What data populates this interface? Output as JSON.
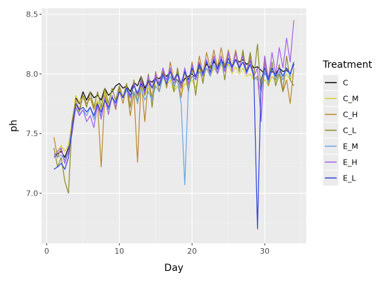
{
  "chart_data": {
    "type": "line",
    "xlabel": "Day",
    "ylabel": "ph",
    "xlim": [
      -0.7,
      35.7
    ],
    "ylim": [
      6.58,
      8.55
    ],
    "x_ticks": [
      0,
      10,
      20,
      30
    ],
    "x_tick_labels": [
      "0",
      "10",
      "20",
      "30"
    ],
    "y_ticks": [
      7.0,
      7.5,
      8.0,
      8.5
    ],
    "y_tick_labels": [
      "7.0",
      "7.5",
      "8.0",
      "8.5"
    ],
    "grid": true,
    "legend": {
      "title": "Treatment",
      "position": "right"
    },
    "x": [
      1,
      1.5,
      2,
      2.5,
      3,
      3.5,
      4,
      4.5,
      5,
      5.5,
      6,
      6.5,
      7,
      7.5,
      8,
      8.5,
      9,
      9.5,
      10,
      10.5,
      11,
      11.5,
      12,
      12.5,
      13,
      13.5,
      14,
      14.5,
      15,
      15.5,
      16,
      16.5,
      17,
      17.5,
      18,
      18.5,
      19,
      19.5,
      20,
      20.5,
      21,
      21.5,
      22,
      22.5,
      23,
      23.5,
      24,
      24.5,
      25,
      25.5,
      26,
      26.5,
      27,
      27.5,
      28,
      28.5,
      29,
      29.5,
      30,
      30.5,
      31,
      31.5,
      32,
      32.5,
      33,
      33.5,
      34
    ],
    "series": [
      {
        "name": "C",
        "color": "#000000",
        "values": [
          7.3,
          7.33,
          7.35,
          7.3,
          7.38,
          7.6,
          7.8,
          7.75,
          7.85,
          7.78,
          7.85,
          7.8,
          7.82,
          7.78,
          7.88,
          7.82,
          7.85,
          7.9,
          7.92,
          7.88,
          7.9,
          7.85,
          7.93,
          7.9,
          7.98,
          7.88,
          7.95,
          7.93,
          7.97,
          7.96,
          8.0,
          7.98,
          8.02,
          7.95,
          7.95,
          7.9,
          7.96,
          7.98,
          8.0,
          7.97,
          8.05,
          8.02,
          8.08,
          8.05,
          8.1,
          8.06,
          8.12,
          8.08,
          8.1,
          8.07,
          8.12,
          8.1,
          8.12,
          8.08,
          8.1,
          8.05,
          8.06,
          8.03,
          8.0,
          7.98,
          8.02,
          8.0,
          8.05,
          8.02,
          8.03,
          8.0,
          8.08
        ]
      },
      {
        "name": "C_M",
        "color": "#d8d22a",
        "values": [
          7.3,
          7.35,
          7.4,
          7.35,
          7.4,
          7.6,
          7.82,
          7.76,
          7.82,
          7.75,
          7.8,
          7.72,
          7.78,
          7.7,
          7.85,
          7.72,
          7.8,
          7.78,
          7.85,
          7.82,
          7.86,
          7.8,
          7.85,
          7.78,
          7.9,
          7.82,
          7.88,
          7.8,
          7.9,
          7.85,
          7.98,
          7.9,
          7.95,
          7.85,
          7.9,
          7.82,
          7.92,
          7.9,
          7.95,
          7.88,
          8.02,
          7.95,
          8.05,
          7.98,
          8.05,
          8.0,
          8.08,
          8.02,
          8.08,
          8.0,
          8.06,
          8.0,
          8.05,
          7.98,
          8.0,
          7.95,
          7.98,
          7.92,
          7.95,
          7.9,
          7.98,
          7.93,
          8.02,
          7.95,
          8.0,
          7.95,
          8.02
        ]
      },
      {
        "name": "C_H",
        "color": "#b8862b",
        "values": [
          7.47,
          7.3,
          7.38,
          7.25,
          7.35,
          7.55,
          7.78,
          7.7,
          7.82,
          7.75,
          7.8,
          7.7,
          7.76,
          7.22,
          7.82,
          7.7,
          7.82,
          7.7,
          7.88,
          7.75,
          7.9,
          7.65,
          7.85,
          7.26,
          7.95,
          7.6,
          7.95,
          7.8,
          8.02,
          7.9,
          8.05,
          7.88,
          8.1,
          7.95,
          8.02,
          7.8,
          8.05,
          7.9,
          8.1,
          7.95,
          8.15,
          8.0,
          8.18,
          8.05,
          8.2,
          8.05,
          8.22,
          8.06,
          8.2,
          8.05,
          8.2,
          8.05,
          8.18,
          8.02,
          8.15,
          7.95,
          7.98,
          7.64,
          8.1,
          7.9,
          8.05,
          7.95,
          8.08,
          7.85,
          7.95,
          7.75,
          8.05
        ]
      },
      {
        "name": "C_L",
        "color": "#8a8a2a",
        "values": [
          7.38,
          7.22,
          7.3,
          7.1,
          7.0,
          7.6,
          7.75,
          7.68,
          7.82,
          7.72,
          7.85,
          7.72,
          7.85,
          7.72,
          7.88,
          7.75,
          7.88,
          7.78,
          7.9,
          7.8,
          7.92,
          7.72,
          7.95,
          7.75,
          7.98,
          7.82,
          8.0,
          7.72,
          7.98,
          7.85,
          8.02,
          7.9,
          8.05,
          7.85,
          8.05,
          7.88,
          8.02,
          7.85,
          8.05,
          7.82,
          8.08,
          7.92,
          8.12,
          7.98,
          8.15,
          8.0,
          8.15,
          7.95,
          8.18,
          8.02,
          8.18,
          8.02,
          8.2,
          8.0,
          8.18,
          7.98,
          8.25,
          7.85,
          8.15,
          7.92,
          8.1,
          7.9,
          8.0,
          7.85,
          8.15,
          7.95,
          7.9
        ]
      },
      {
        "name": "E_M",
        "color": "#6aa3e8",
        "values": [
          7.33,
          7.3,
          7.32,
          7.28,
          7.35,
          7.55,
          7.72,
          7.66,
          7.7,
          7.65,
          7.72,
          7.62,
          7.75,
          7.65,
          7.78,
          7.7,
          7.8,
          7.75,
          7.85,
          7.8,
          7.86,
          7.8,
          7.85,
          7.76,
          7.88,
          7.78,
          7.85,
          7.78,
          7.9,
          7.85,
          7.98,
          7.92,
          7.98,
          7.9,
          7.95,
          7.75,
          7.07,
          7.9,
          7.98,
          7.95,
          8.02,
          7.98,
          8.05,
          7.98,
          8.08,
          8.0,
          8.1,
          8.02,
          8.1,
          8.04,
          8.12,
          8.05,
          8.1,
          8.0,
          8.08,
          7.98,
          7.95,
          7.85,
          8.02,
          7.92,
          8.05,
          7.95,
          8.02,
          7.95,
          8.05,
          7.98,
          8.1
        ]
      },
      {
        "name": "E_H",
        "color": "#a35df0",
        "values": [
          7.3,
          7.35,
          7.38,
          7.25,
          7.35,
          7.5,
          7.72,
          7.65,
          7.7,
          7.6,
          7.65,
          7.55,
          7.75,
          7.62,
          7.8,
          7.66,
          7.82,
          7.72,
          7.85,
          7.8,
          7.88,
          7.8,
          7.92,
          7.82,
          7.95,
          7.84,
          7.98,
          7.88,
          8.0,
          7.92,
          8.05,
          7.95,
          8.05,
          7.92,
          8.0,
          7.88,
          8.05,
          7.92,
          8.08,
          7.95,
          8.1,
          7.98,
          8.12,
          8.0,
          8.15,
          8.0,
          8.15,
          8.02,
          8.18,
          8.02,
          8.18,
          8.05,
          8.15,
          8.0,
          8.12,
          7.98,
          8.05,
          7.6,
          8.15,
          7.95,
          8.18,
          8.0,
          8.22,
          8.05,
          8.3,
          8.1,
          8.45
        ]
      },
      {
        "name": "E_L",
        "color": "#2b3fe0",
        "values": [
          7.2,
          7.22,
          7.25,
          7.2,
          7.3,
          7.55,
          7.75,
          7.7,
          7.72,
          7.68,
          7.72,
          7.65,
          7.75,
          7.68,
          7.78,
          7.72,
          7.8,
          7.76,
          7.85,
          7.8,
          7.88,
          7.82,
          7.9,
          7.84,
          7.92,
          7.86,
          7.94,
          7.88,
          7.96,
          7.9,
          8.0,
          7.92,
          8.02,
          7.95,
          8.0,
          7.92,
          8.02,
          7.95,
          8.05,
          7.98,
          8.08,
          8.0,
          8.1,
          8.02,
          8.12,
          8.04,
          8.12,
          8.05,
          8.13,
          8.06,
          8.12,
          8.05,
          8.1,
          8.02,
          8.08,
          7.98,
          6.7,
          7.95,
          8.05,
          7.95,
          8.05,
          7.98,
          8.05,
          7.98,
          8.05,
          8.0,
          8.1
        ]
      }
    ]
  }
}
